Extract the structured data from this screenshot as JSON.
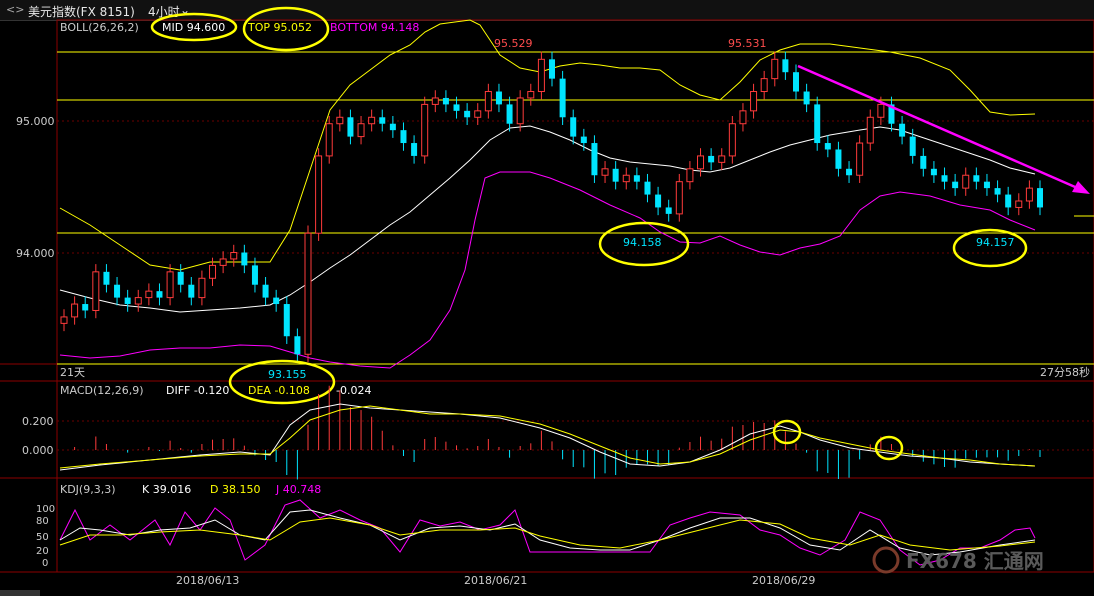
{
  "titlebar": {
    "nav_icon": "back-forward-icon",
    "nav_symbol": "<>",
    "instrument": "美元指数(FX 8151)",
    "period": "4小时",
    "period_dropdown_icon": "chevron-down-icon"
  },
  "boll": {
    "title": "BOLL(26,26,2)",
    "mid": "MID 94.600",
    "top": "TOP 95.052",
    "bottom": "BOTTOM 94.148",
    "colors": {
      "mid": "#ffffff",
      "top": "#ffff00",
      "bottom": "#ff00ff"
    }
  },
  "price_axis": {
    "labels": [
      "95.000",
      "94.000"
    ]
  },
  "annotations": {
    "high1": "95.529",
    "high2": "95.531",
    "low_left": "93.155",
    "low_mid": "94.158",
    "low_right": "94.157",
    "period_label": "21天",
    "countdown": "27分58秒"
  },
  "macd": {
    "title": "MACD(12,26,9)",
    "diff": "DIFF -0.120",
    "dea": "DEA -0.108",
    "macd": "-0.024",
    "axis_labels": [
      "0.200",
      "0.000"
    ]
  },
  "kdj": {
    "title": "KDJ(9,3,3)",
    "k": "K 39.016",
    "d": "D 38.150",
    "j": "J 40.748",
    "axis_labels": [
      "100",
      "80",
      "50",
      "20",
      "0"
    ]
  },
  "date_axis": {
    "labels": [
      "2018/06/13",
      "2018/06/21",
      "2018/06/29"
    ]
  },
  "watermark": "FX678 汇通网",
  "colors": {
    "up": "#ff3b3b",
    "down": "#00e5ff",
    "highlight_ellipse": "#ffff00",
    "trend_arrow": "#ff00ff"
  },
  "chart_data": {
    "type": "line",
    "series": [
      {
        "name": "MID",
        "values_note": "",
        "last": 94.6
      },
      {
        "name": "TOP",
        "last": 95.052
      },
      {
        "name": "BOTTOM",
        "last": 94.148
      }
    ],
    "candles_close": [
      93.45,
      93.55,
      93.5,
      93.8,
      93.7,
      93.6,
      93.55,
      93.6,
      93.65,
      93.6,
      93.8,
      93.7,
      93.6,
      93.75,
      93.85,
      93.9,
      93.95,
      93.85,
      93.7,
      93.6,
      93.55,
      93.3,
      93.16,
      94.1,
      94.7,
      94.95,
      95.0,
      94.85,
      94.95,
      95.0,
      94.95,
      94.9,
      94.8,
      94.7,
      95.1,
      95.15,
      95.1,
      95.05,
      95.0,
      95.05,
      95.2,
      95.1,
      94.95,
      95.15,
      95.2,
      95.45,
      95.3,
      95.0,
      94.85,
      94.8,
      94.55,
      94.6,
      94.5,
      94.55,
      94.5,
      94.4,
      94.3,
      94.25,
      94.5,
      94.6,
      94.7,
      94.65,
      94.7,
      94.95,
      95.05,
      95.2,
      95.3,
      95.45,
      95.35,
      95.2,
      95.1,
      94.8,
      94.75,
      94.6,
      94.55,
      94.8,
      95.0,
      95.1,
      94.95,
      94.85,
      94.7,
      94.6,
      94.55,
      94.5,
      94.45,
      94.55,
      94.5,
      94.45,
      94.4,
      94.3,
      94.35,
      94.45,
      94.3
    ],
    "ylim": [
      93.1,
      95.6
    ],
    "x_ticks": [
      "2018/06/13",
      "2018/06/21",
      "2018/06/29"
    ]
  }
}
